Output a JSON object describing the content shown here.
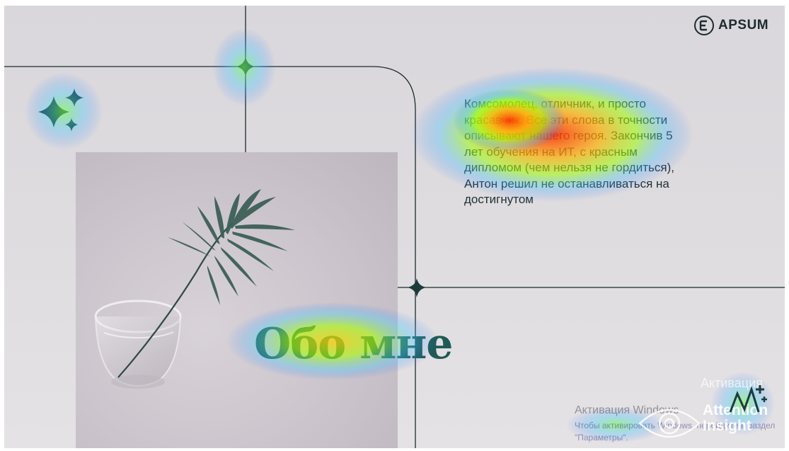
{
  "logo": {
    "text": "APSUM",
    "icon": "e-circle-icon"
  },
  "slide": {
    "body": "Комсомолец, отличник, и просто красавчик. Все эти слова в точности описывают нашего героя. Закончив 5 лет обучения на ИТ, с красным дипломом (чем нельзя не гордиться), Антон решил не останавливаться на достигнутом",
    "body_lines": [
      "Комсомолец, отличник, и просто",
      "красавчик. Все эти слова в точности",
      "описывают нашего героя. Закончив 5",
      "лет обучения на ИТ, с красным",
      "дипломом (чем нельзя не гордиться),",
      "Антон решил не останавливаться на",
      "достигнутом"
    ],
    "title": "Обо мне"
  },
  "watermark": {
    "title": "Активация Windows",
    "subtitle": "Чтобы активировать Windows, перейдите в раздел \"Параметры\".",
    "right": "Активация"
  },
  "brand": {
    "line1": "Attention",
    "line2": "Insight",
    "icon": "eye-icon"
  },
  "colors": {
    "accent": "#1f5a55",
    "text": "#1f3134",
    "lines": "#1d2b2f"
  }
}
